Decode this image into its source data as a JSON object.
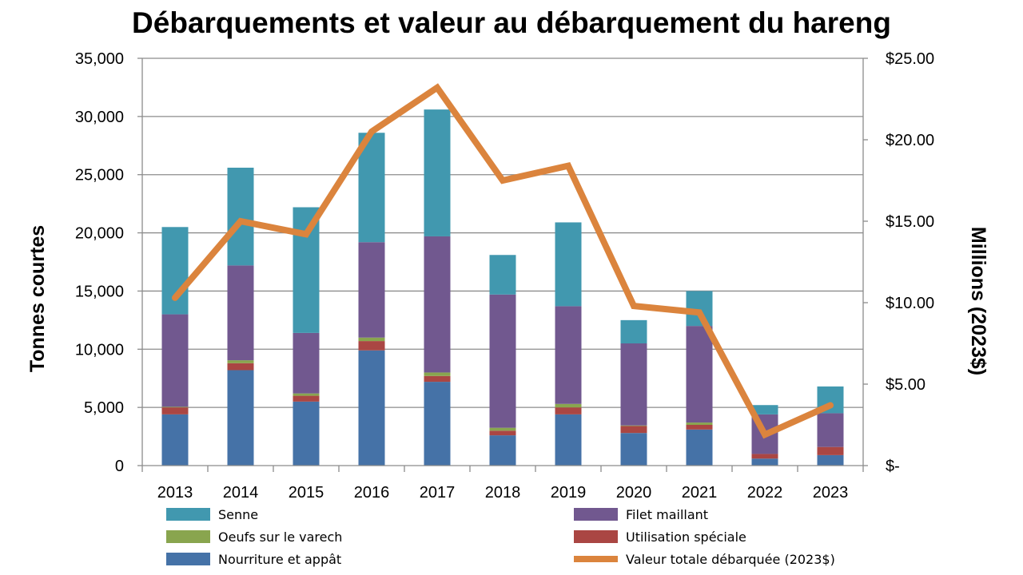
{
  "chart_data": {
    "type": "bar",
    "stacked": true,
    "title": "Débarquements et valeur au débarquement du hareng",
    "ylabel": "Tonnes courtes",
    "y2label": "Millions (2023$)",
    "ylim": [
      0,
      35000
    ],
    "y2lim": [
      0,
      25
    ],
    "yticks": [
      "0",
      "5,000",
      "10,000",
      "15,000",
      "20,000",
      "25,000",
      "30,000",
      "35,000"
    ],
    "y2ticks": [
      "$-",
      "$5.00",
      "$10.00",
      "$15.00",
      "$20.00",
      "$25.00"
    ],
    "categories": [
      "2013",
      "2014",
      "2015",
      "2016",
      "2017",
      "2018",
      "2019",
      "2020",
      "2021",
      "2022",
      "2023"
    ],
    "grid": true,
    "legend_position": "bottom",
    "series": [
      {
        "name": "Nourriture et appât",
        "color": "#4572A7",
        "values": [
          4400,
          8200,
          5500,
          9900,
          7200,
          2600,
          4400,
          2800,
          3100,
          600,
          900
        ]
      },
      {
        "name": "Utilisation spéciale",
        "color": "#AA4643",
        "values": [
          600,
          600,
          500,
          800,
          500,
          400,
          600,
          600,
          400,
          400,
          700
        ]
      },
      {
        "name": "Oeufs sur le varech",
        "color": "#89A54E",
        "values": [
          50,
          250,
          200,
          300,
          300,
          250,
          300,
          50,
          200,
          0,
          0
        ]
      },
      {
        "name": "Filet maillant",
        "color": "#71588F",
        "values": [
          7950,
          8150,
          5200,
          8200,
          11700,
          11450,
          8400,
          7050,
          8300,
          3400,
          2900
        ]
      },
      {
        "name": "Senne",
        "color": "#4198AF",
        "values": [
          7500,
          8400,
          10800,
          9400,
          10900,
          3400,
          7200,
          2000,
          3000,
          800,
          2300
        ]
      }
    ],
    "line_series": {
      "name": "Valeur totale débarquée (2023$)",
      "color": "#DB843D",
      "axis": "right",
      "values": [
        10.3,
        15.0,
        14.2,
        20.5,
        23.2,
        17.5,
        18.4,
        9.8,
        9.4,
        1.9,
        3.7
      ]
    },
    "legend": [
      {
        "label": "Senne",
        "kind": "box",
        "color": "#4198AF"
      },
      {
        "label": "Filet maillant",
        "kind": "box",
        "color": "#71588F"
      },
      {
        "label": "Oeufs sur le varech",
        "kind": "box",
        "color": "#89A54E"
      },
      {
        "label": "Utilisation spéciale",
        "kind": "box",
        "color": "#AA4643"
      },
      {
        "label": "Nourriture et appât",
        "kind": "box",
        "color": "#4572A7"
      },
      {
        "label": "Valeur totale débarquée (2023$)",
        "kind": "line",
        "color": "#DB843D"
      }
    ]
  }
}
